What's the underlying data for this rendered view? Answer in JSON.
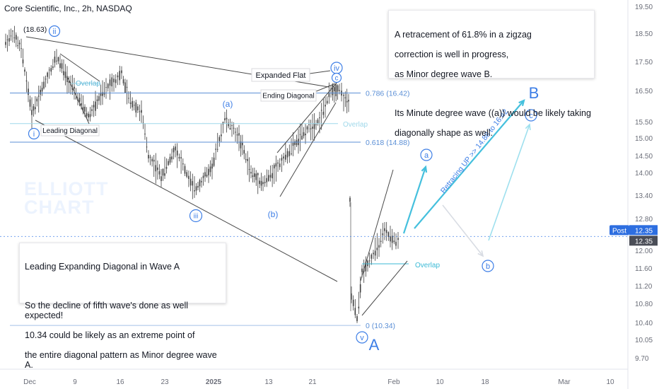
{
  "header": {
    "ticker_line": "Core Scientific, Inc., 2h, NASDAQ"
  },
  "watermark": {
    "line1": "ELLIOTT",
    "line2": "CHART"
  },
  "notes": {
    "right": {
      "line1": "A retracement of 61.8% in a zigzag",
      "line2": "correction is well in progress,",
      "line3": "as Minor degree wave B.",
      "line4": "Its Minute degree wave ((a)) would be likely taking",
      "line5": "diagonally shape as well."
    },
    "left": {
      "line1": "Leading Expanding Diagonal in Wave A",
      "line2": "So the decline of fifth wave's done as well expected!",
      "line3": "10.34 could be likely as an extreme point of",
      "line4": " the entire diagonal pattern as Minor degree wave A."
    }
  },
  "colors": {
    "fib_line": "#5b8fd6",
    "overlap_line": "#9fd8ea",
    "projection": "#45c0dd",
    "projection_faded": "#9ee0ee",
    "wave_label": "#3d7ee6",
    "diagonal": "#4a4a4a",
    "candle": "#3c3c3c",
    "price_tag": "#2d6ee0",
    "crosshair": "#3d7ee6"
  },
  "chart_data": {
    "type": "candlestick",
    "title": "Core Scientific, Inc., 2h, NASDAQ",
    "ylim": [
      9.45,
      19.8
    ],
    "y_ticks": [
      19.5,
      18.5,
      17.5,
      16.5,
      15.5,
      15.0,
      14.5,
      14.0,
      13.4,
      12.8,
      12.0,
      11.6,
      11.2,
      10.8,
      10.4,
      10.05,
      9.7
    ],
    "x_ticks": [
      "Dec",
      "9",
      "16",
      "23",
      "2025",
      "13",
      "21",
      "Feb",
      "10",
      "18",
      "Mar",
      "10"
    ],
    "current_price": {
      "tag_label": "Post",
      "value": "12.35",
      "last_value": "12.35",
      "level": 12.35
    },
    "fib_levels": [
      {
        "label": "0.786 (16.42)",
        "value": 16.42
      },
      {
        "label": "0.618 (14.88)",
        "value": 14.88
      },
      {
        "label": "0 (10.34)",
        "value": 10.34
      }
    ],
    "price_series": [
      [
        "Dec 1",
        18.2
      ],
      [
        "Dec 3",
        17.3
      ],
      [
        "Dec 5",
        15.7
      ],
      [
        "Dec 9",
        17.9
      ],
      [
        "Dec 11",
        16.3
      ],
      [
        "Dec 13",
        15.4
      ],
      [
        "Dec 16",
        16.5
      ],
      [
        "Dec 17",
        17.0
      ],
      [
        "Dec 19",
        15.2
      ],
      [
        "Dec 20",
        14.6
      ],
      [
        "Dec 23",
        14.1
      ],
      [
        "Dec 26",
        14.6
      ],
      [
        "Dec 27",
        14.0
      ],
      [
        "Dec 30",
        13.1
      ],
      [
        "2025-01-03",
        14.3
      ],
      [
        "Jan 6",
        15.6
      ],
      [
        "Jan 8",
        15.3
      ],
      [
        "Jan 10",
        14.1
      ],
      [
        "Jan 13",
        13.2
      ],
      [
        "Jan 15",
        13.8
      ],
      [
        "Jan 17",
        14.8
      ],
      [
        "Jan 21",
        15.5
      ],
      [
        "Jan 23",
        16.4
      ],
      [
        "Jan 24",
        16.0
      ],
      [
        "Jan 27",
        11.1
      ],
      [
        "Jan 29",
        11.8
      ],
      [
        "Jan 30",
        12.6
      ],
      [
        "Jan 31",
        12.3
      ],
      [
        "Feb 1",
        12.35
      ]
    ],
    "annotations": {
      "price_label": "(18.63)",
      "overlap": "Overlap",
      "leading_diagonal": "Leading Diagonal",
      "expanded_flat": "Expanded Flat",
      "ending_diagonal": "Ending Diagonal",
      "retracing": "Retracing UP >> 14.88 to 16.42",
      "waves": {
        "i": "i",
        "ii": "ii",
        "iii": "iii",
        "iv": "iv",
        "v": "v",
        "a_paren": "(a)",
        "b_paren": "(b)",
        "c_paren": "c",
        "a_small": "a",
        "b_small": "b",
        "c_small": "c",
        "A": "A",
        "B": "B"
      }
    }
  }
}
